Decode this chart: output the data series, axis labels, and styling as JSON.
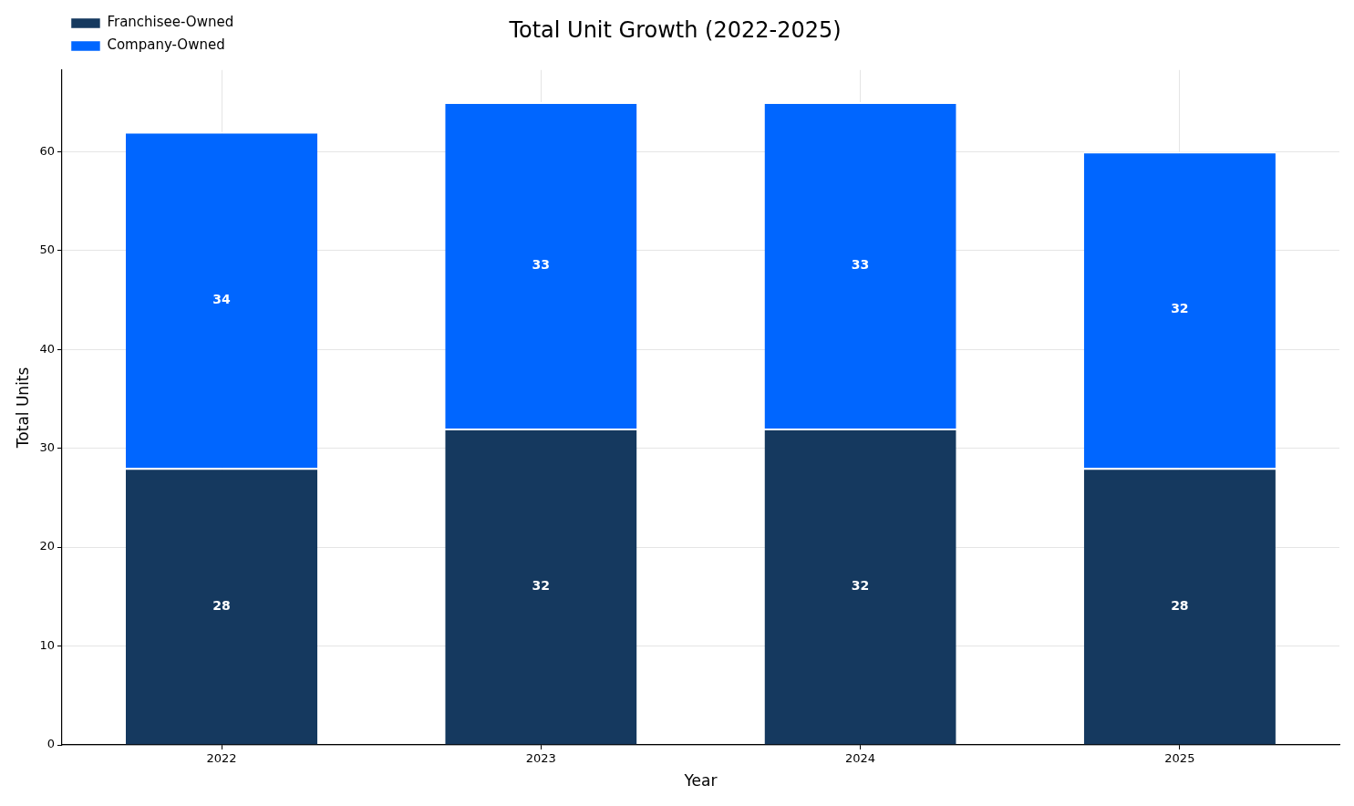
{
  "chart_data": {
    "type": "bar",
    "title": "Total Unit Growth (2022-2025)",
    "xlabel": "Year",
    "ylabel": "Total Units",
    "categories": [
      "2022",
      "2023",
      "2024",
      "2025"
    ],
    "series": [
      {
        "name": "Franchisee-Owned",
        "color": "#15395f",
        "values": [
          28,
          32,
          32,
          28
        ]
      },
      {
        "name": "Company-Owned",
        "color": "#0066ff",
        "values": [
          34,
          33,
          33,
          32
        ]
      }
    ],
    "stacked": true,
    "ylim": [
      0,
      68.25
    ],
    "yticks": [
      0,
      10,
      20,
      30,
      40,
      50,
      60
    ],
    "grid": true,
    "legend": "top left",
    "data_labels": true
  }
}
